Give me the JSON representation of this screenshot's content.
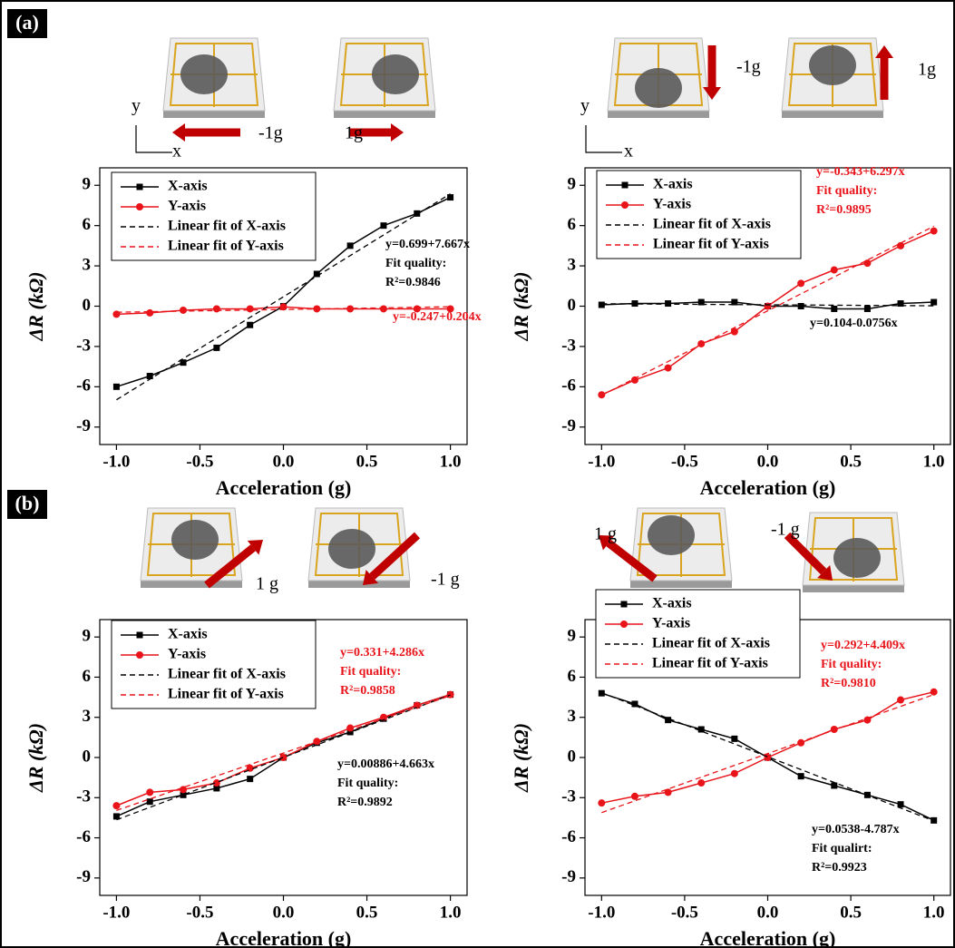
{
  "panel_labels": [
    "(a)",
    "(b)"
  ],
  "chart_data": [
    {
      "type": "line",
      "x": [
        -1,
        -0.8,
        -0.6,
        -0.4,
        -0.2,
        0,
        0.2,
        0.4,
        0.6,
        0.8,
        1
      ],
      "x_label": "Acceleration (g)",
      "y_label": "ΔR (kΩ)",
      "xlim": [
        -1.1,
        1.1
      ],
      "ylim": [
        -10.3,
        10.3
      ],
      "xticks": [
        {
          "value": -1,
          "label": "-1.0"
        },
        -0.5,
        {
          "value": 0,
          "label": "0.0"
        },
        0.5,
        {
          "value": 1,
          "label": "1.0"
        }
      ],
      "yticks": [
        -9,
        -6,
        -3,
        0,
        3,
        6,
        9
      ],
      "grid": false,
      "legend": "upper left",
      "series": [
        {
          "name": "X-axis",
          "color": "#000000",
          "marker": "square",
          "values": [
            -6.0,
            -5.2,
            -4.2,
            -3.1,
            -1.4,
            0,
            2.4,
            4.5,
            6.0,
            6.9,
            8.1
          ]
        },
        {
          "name": "Y-axis",
          "color": "#e8141a",
          "marker": "circle",
          "values": [
            -0.6,
            -0.5,
            -0.3,
            -0.2,
            -0.2,
            -0.05,
            -0.2,
            -0.2,
            -0.2,
            -0.2,
            -0.2
          ]
        },
        {
          "name": "Linear fit of X-axis",
          "color": "#000000",
          "style": "dashed",
          "x": [
            -1,
            1
          ],
          "values": [
            -6.968,
            8.366
          ]
        },
        {
          "name": "Linear fit of Y-axis",
          "color": "#e8141a",
          "style": "dashed",
          "x": [
            -1,
            1
          ],
          "values": [
            -0.451,
            -0.043
          ]
        }
      ],
      "annotations": [
        {
          "color": "#000000",
          "lines": [
            "y=0.699+7.667x",
            "Fit quality:",
            "R²=0.9846"
          ]
        },
        {
          "color": "#e8141a",
          "lines": [
            "y=-0.247+0.204x"
          ]
        }
      ],
      "illustration_labels": [
        "y",
        "x",
        "-1g",
        "1g"
      ]
    },
    {
      "type": "line",
      "x": [
        -1,
        -0.8,
        -0.6,
        -0.4,
        -0.2,
        0,
        0.2,
        0.4,
        0.6,
        0.8,
        1
      ],
      "x_label": "Acceleration (g)",
      "y_label": "ΔR (kΩ)",
      "xlim": [
        -1.1,
        1.1
      ],
      "ylim": [
        -10.3,
        10.3
      ],
      "xticks": [
        {
          "value": -1,
          "label": "-1.0"
        },
        -0.5,
        {
          "value": 0,
          "label": "0.0"
        },
        0.5,
        {
          "value": 1,
          "label": "1.0"
        }
      ],
      "yticks": [
        -9,
        -6,
        -3,
        0,
        3,
        6,
        9
      ],
      "grid": false,
      "legend": "upper left",
      "series": [
        {
          "name": "X-axis",
          "color": "#000000",
          "marker": "square",
          "values": [
            0.1,
            0.2,
            0.2,
            0.3,
            0.3,
            0,
            0,
            -0.2,
            -0.2,
            0.2,
            0.3
          ]
        },
        {
          "name": "Y-axis",
          "color": "#e8141a",
          "marker": "circle",
          "values": [
            -6.6,
            -5.5,
            -4.6,
            -2.8,
            -1.9,
            0,
            1.7,
            2.7,
            3.2,
            4.5,
            5.6
          ]
        },
        {
          "name": "Linear fit of X-axis",
          "color": "#000000",
          "style": "dashed",
          "x": [
            -1,
            1
          ],
          "values": [
            0.18,
            0.028
          ]
        },
        {
          "name": "Linear fit of Y-axis",
          "color": "#e8141a",
          "style": "dashed",
          "x": [
            -1,
            1
          ],
          "values": [
            -6.64,
            5.954
          ]
        }
      ],
      "annotations": [
        {
          "color": "#e8141a",
          "lines": [
            "y=-0.343+6.297x",
            "Fit quality:",
            "R²=0.9895"
          ]
        },
        {
          "color": "#000000",
          "lines": [
            "y=0.104-0.0756x"
          ]
        }
      ],
      "illustration_labels": [
        "-1g",
        "1g",
        "y",
        "x"
      ]
    },
    {
      "type": "line",
      "x": [
        -1,
        -0.8,
        -0.6,
        -0.4,
        -0.2,
        0,
        0.2,
        0.4,
        0.6,
        0.8,
        1
      ],
      "x_label": "Acceleration (g)",
      "y_label": "ΔR (kΩ)",
      "xlim": [
        -1.1,
        1.1
      ],
      "ylim": [
        -10.3,
        10.3
      ],
      "xticks": [
        {
          "value": -1,
          "label": "-1.0"
        },
        -0.5,
        {
          "value": 0,
          "label": "0.0"
        },
        0.5,
        {
          "value": 1,
          "label": "1.0"
        }
      ],
      "yticks": [
        -9,
        -6,
        -3,
        0,
        3,
        6,
        9
      ],
      "grid": false,
      "legend": "upper left",
      "series": [
        {
          "name": "X-axis",
          "color": "#000000",
          "marker": "square",
          "values": [
            -4.4,
            -3.3,
            -2.8,
            -2.3,
            -1.6,
            0,
            1.1,
            1.9,
            2.9,
            3.9,
            4.7
          ]
        },
        {
          "name": "Y-axis",
          "color": "#e8141a",
          "marker": "circle",
          "values": [
            -3.6,
            -2.6,
            -2.4,
            -1.9,
            -0.8,
            0,
            1.2,
            2.2,
            3.0,
            3.9,
            4.7
          ]
        },
        {
          "name": "Linear fit of X-axis",
          "color": "#000000",
          "style": "dashed",
          "x": [
            -1,
            1
          ],
          "values": [
            -4.654,
            4.672
          ]
        },
        {
          "name": "Linear fit of Y-axis",
          "color": "#e8141a",
          "style": "dashed",
          "x": [
            -1,
            1
          ],
          "values": [
            -3.955,
            4.617
          ]
        }
      ],
      "annotations": [
        {
          "color": "#e8141a",
          "lines": [
            "y=0.331+4.286x",
            "Fit quality:",
            "R²=0.9858"
          ]
        },
        {
          "color": "#000000",
          "lines": [
            "y=0.00886+4.663x",
            "Fit quality:",
            "R²=0.9892"
          ]
        }
      ],
      "illustration_labels": [
        "1 g",
        "-1 g"
      ]
    },
    {
      "type": "line",
      "x": [
        -1,
        -0.8,
        -0.6,
        -0.4,
        -0.2,
        0,
        0.2,
        0.4,
        0.6,
        0.8,
        1
      ],
      "x_label": "Acceleration (g)",
      "y_label": "ΔR (kΩ)",
      "xlim": [
        -1.1,
        1.1
      ],
      "ylim": [
        -10.3,
        10.3
      ],
      "xticks": [
        {
          "value": -1,
          "label": "-1.0"
        },
        -0.5,
        {
          "value": 0,
          "label": "0.0"
        },
        0.5,
        {
          "value": 1,
          "label": "1.0"
        }
      ],
      "yticks": [
        -9,
        -6,
        -3,
        0,
        3,
        6,
        9
      ],
      "grid": false,
      "legend": "upper left",
      "series": [
        {
          "name": "X-axis",
          "color": "#000000",
          "marker": "square",
          "values": [
            4.8,
            4.0,
            2.8,
            2.1,
            1.4,
            0,
            -1.4,
            -2.1,
            -2.8,
            -3.5,
            -4.7
          ]
        },
        {
          "name": "Y-axis",
          "color": "#e8141a",
          "marker": "circle",
          "values": [
            -3.4,
            -2.9,
            -2.6,
            -1.9,
            -1.2,
            0,
            1.1,
            2.1,
            2.8,
            4.3,
            4.9
          ]
        },
        {
          "name": "Linear fit of X-axis",
          "color": "#000000",
          "style": "dashed",
          "x": [
            -1,
            1
          ],
          "values": [
            4.841,
            -4.733
          ]
        },
        {
          "name": "Linear fit of Y-axis",
          "color": "#e8141a",
          "style": "dashed",
          "x": [
            -1,
            1
          ],
          "values": [
            -4.117,
            4.701
          ]
        }
      ],
      "annotations": [
        {
          "color": "#e8141a",
          "lines": [
            "y=0.292+4.409x",
            "Fit quality:",
            "R²=0.9810"
          ]
        },
        {
          "color": "#000000",
          "lines": [
            "y=0.0538-4.787x",
            "Fit qualirt:",
            "R²=0.9923"
          ]
        }
      ],
      "illustration_labels": [
        "1 g",
        "-1 g"
      ]
    }
  ]
}
